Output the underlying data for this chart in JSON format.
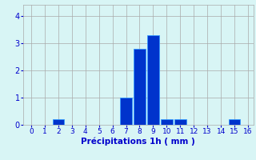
{
  "bar_values": [
    0,
    0,
    0.2,
    0,
    0,
    0,
    0,
    1.0,
    2.8,
    3.3,
    0.2,
    0.2,
    0,
    0,
    0,
    0.2
  ],
  "bar_positions": [
    0,
    1,
    2,
    3,
    4,
    5,
    6,
    7,
    8,
    9,
    10,
    11,
    12,
    13,
    14,
    15
  ],
  "xtick_labels": [
    "0",
    "1",
    "2",
    "3",
    "4",
    "5",
    "6",
    "7",
    "8",
    "9",
    "10",
    "11",
    "12",
    "13",
    "14",
    "15",
    "16"
  ],
  "ytick_values": [
    0,
    1,
    2,
    3,
    4
  ],
  "xlim": [
    -0.6,
    16.4
  ],
  "ylim": [
    0,
    4.4
  ],
  "xlabel": "Précipitations 1h ( mm )",
  "bar_color": "#0033cc",
  "bar_edge_color": "#3399ff",
  "bg_color": "#d8f5f5",
  "grid_color": "#aaaaaa",
  "axis_color": "#0000cc",
  "xlabel_fontsize": 7.5,
  "tick_fontsize": 6.5
}
